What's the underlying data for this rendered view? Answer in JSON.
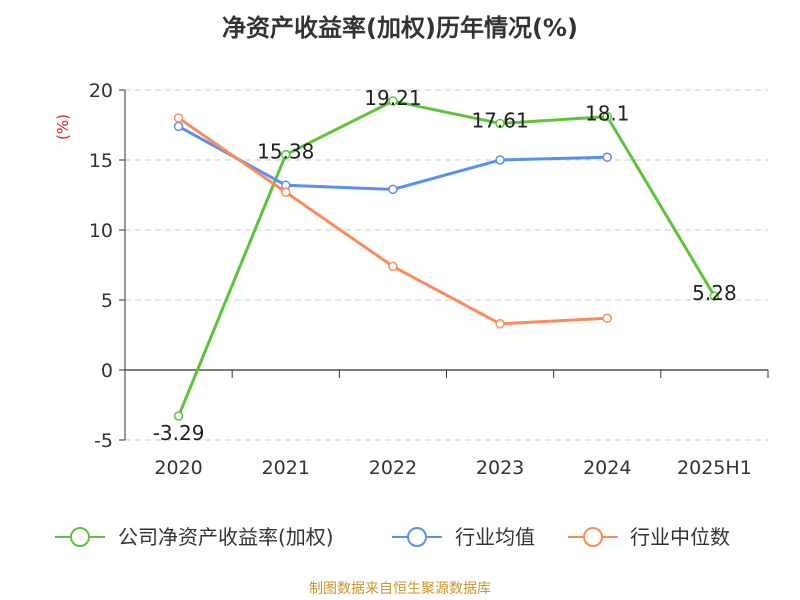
{
  "chart_data": {
    "type": "line",
    "title": "净资产收益率(加权)历年情况(%)",
    "ylabel": "(%)",
    "xlabel": "",
    "categories": [
      "2020",
      "2021",
      "2022",
      "2023",
      "2024",
      "2025H1"
    ],
    "ylim": [
      -5,
      20
    ],
    "yticks": [
      -5,
      0,
      5,
      10,
      15,
      20
    ],
    "grid": true,
    "legend_position": "bottom",
    "series": [
      {
        "name": "公司净资产收益率(加权)",
        "color": "#5cc43a",
        "values": [
          -3.29,
          15.38,
          19.21,
          17.61,
          18.1,
          5.28
        ],
        "show_labels": true
      },
      {
        "name": "行业均值",
        "color": "#5b8ff0",
        "values": [
          17.4,
          13.2,
          12.9,
          15.0,
          15.2,
          null
        ],
        "show_labels": false
      },
      {
        "name": "行业中位数",
        "color": "#fb8b5a",
        "values": [
          18.0,
          12.7,
          7.4,
          3.3,
          3.7,
          null
        ],
        "show_labels": false
      }
    ]
  },
  "footer": {
    "source": "制图数据来自恒生聚源数据库"
  },
  "colors": {
    "ylabel": "#e02020",
    "grid": "#cccccc",
    "axis": "#333333"
  }
}
